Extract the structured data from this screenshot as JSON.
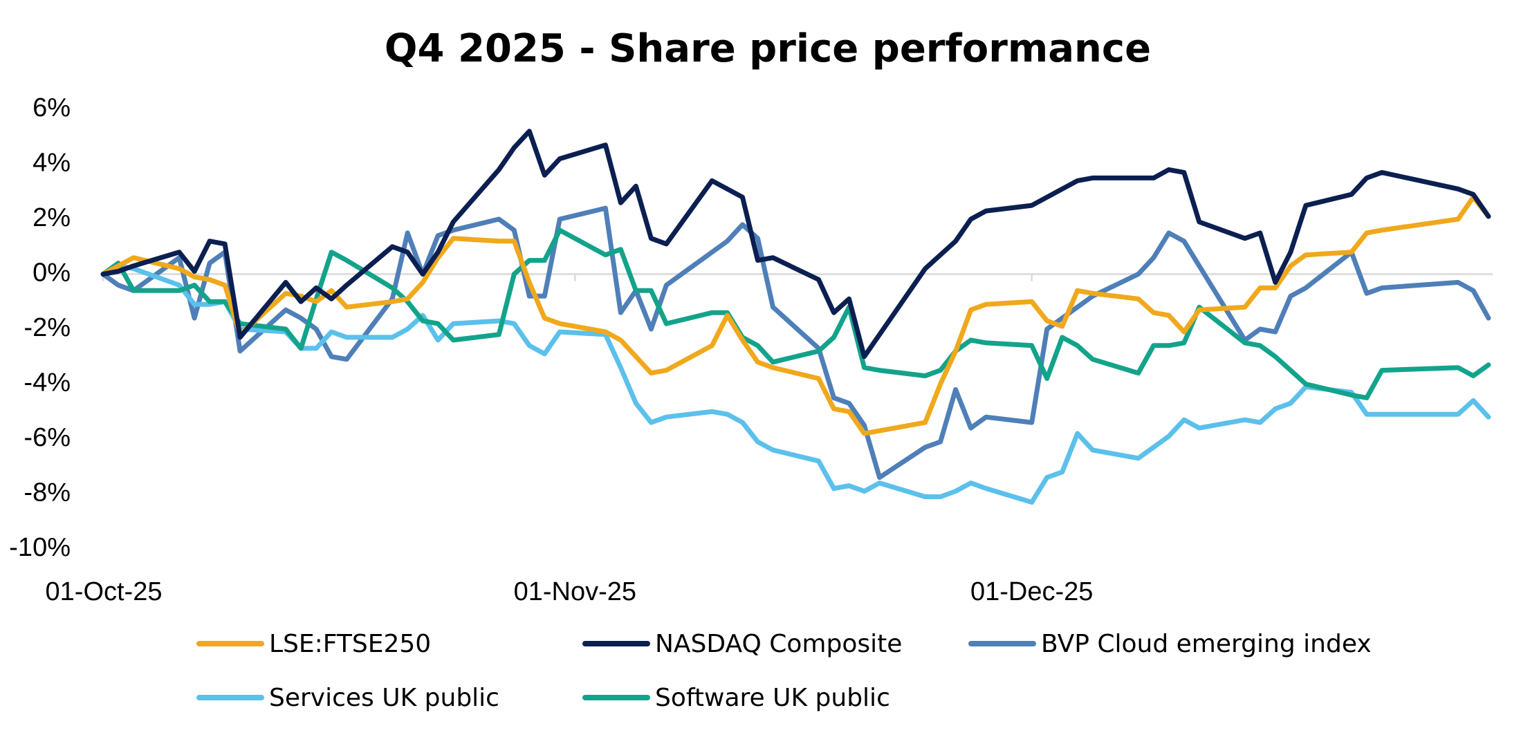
{
  "chart_data": {
    "type": "line",
    "title": "Q4 2025 - Share price performance",
    "x": [
      "2025-10-01",
      "2025-10-02",
      "2025-10-03",
      "2025-10-06",
      "2025-10-07",
      "2025-10-08",
      "2025-10-09",
      "2025-10-10",
      "2025-10-13",
      "2025-10-14",
      "2025-10-15",
      "2025-10-16",
      "2025-10-17",
      "2025-10-20",
      "2025-10-21",
      "2025-10-22",
      "2025-10-23",
      "2025-10-24",
      "2025-10-27",
      "2025-10-28",
      "2025-10-29",
      "2025-10-30",
      "2025-10-31",
      "2025-11-03",
      "2025-11-04",
      "2025-11-05",
      "2025-11-06",
      "2025-11-07",
      "2025-11-10",
      "2025-11-11",
      "2025-11-12",
      "2025-11-13",
      "2025-11-14",
      "2025-11-17",
      "2025-11-18",
      "2025-11-19",
      "2025-11-20",
      "2025-11-21",
      "2025-11-24",
      "2025-11-25",
      "2025-11-26",
      "2025-11-27",
      "2025-11-28",
      "2025-12-01",
      "2025-12-02",
      "2025-12-03",
      "2025-12-04",
      "2025-12-05",
      "2025-12-08",
      "2025-12-09",
      "2025-12-10",
      "2025-12-11",
      "2025-12-12",
      "2025-12-15",
      "2025-12-16",
      "2025-12-17",
      "2025-12-18",
      "2025-12-19",
      "2025-12-22",
      "2025-12-23",
      "2025-12-24",
      "2025-12-29",
      "2025-12-30",
      "2025-12-31"
    ],
    "series": [
      {
        "name": "LSE:FTSE250",
        "color": "#f0a81c",
        "values": [
          0,
          0.3,
          0.6,
          0.2,
          -0.1,
          -0.2,
          -0.4,
          -2.2,
          -0.7,
          -0.8,
          -1.0,
          -0.6,
          -1.2,
          -1.0,
          -0.9,
          -0.3,
          0.6,
          1.3,
          1.2,
          1.2,
          -0.3,
          -1.6,
          -1.8,
          -2.1,
          -2.4,
          -3.0,
          -3.6,
          -3.5,
          -2.6,
          -1.5,
          -2.4,
          -3.2,
          -3.4,
          -3.8,
          -4.9,
          -5.0,
          -5.8,
          -5.7,
          -5.4,
          -4.0,
          -2.8,
          -1.3,
          -1.1,
          -1.0,
          -1.7,
          -1.9,
          -0.6,
          -0.7,
          -0.9,
          -1.4,
          -1.5,
          -2.1,
          -1.3,
          -1.2,
          -0.5,
          -0.5,
          0.3,
          0.7,
          0.8,
          1.5,
          1.6,
          2.0,
          2.8,
          2.1
        ]
      },
      {
        "name": "NASDAQ Composite",
        "color": "#0b1f51",
        "values": [
          0,
          0.1,
          0.3,
          0.8,
          0.1,
          1.2,
          1.1,
          -2.3,
          -0.3,
          -1.0,
          -0.5,
          -0.9,
          -0.4,
          1.0,
          0.8,
          0.0,
          0.8,
          1.9,
          3.8,
          4.6,
          5.2,
          3.6,
          4.2,
          4.7,
          2.6,
          3.2,
          1.3,
          1.1,
          3.4,
          3.1,
          2.8,
          0.5,
          0.6,
          -0.2,
          -1.4,
          -0.9,
          -3.0,
          -2.2,
          0.2,
          0.7,
          1.2,
          2.0,
          2.3,
          2.5,
          2.8,
          3.1,
          3.4,
          3.5,
          3.5,
          3.5,
          3.8,
          3.7,
          1.9,
          1.3,
          1.5,
          -0.3,
          0.8,
          2.5,
          2.9,
          3.5,
          3.7,
          3.1,
          2.9,
          2.1
        ]
      },
      {
        "name": "BVP Cloud emerging index",
        "color": "#4f7fb8",
        "values": [
          0,
          -0.4,
          -0.6,
          0.6,
          -1.6,
          0.4,
          0.8,
          -2.8,
          -1.3,
          -1.6,
          -2.0,
          -3.0,
          -3.1,
          -0.9,
          1.5,
          0.0,
          1.4,
          1.6,
          2.0,
          1.6,
          -0.8,
          -0.8,
          2.0,
          2.4,
          -1.4,
          -0.6,
          -2.0,
          -0.4,
          0.8,
          1.2,
          1.8,
          1.3,
          -1.2,
          -2.7,
          -4.5,
          -4.7,
          -5.5,
          -7.4,
          -6.3,
          -6.1,
          -4.2,
          -5.6,
          -5.2,
          -5.4,
          -2.0,
          -1.6,
          -1.2,
          -0.8,
          0.0,
          0.6,
          1.5,
          1.2,
          0.3,
          -2.4,
          -2.0,
          -2.1,
          -0.8,
          -0.5,
          0.8,
          -0.7,
          -0.5,
          -0.3,
          -0.6,
          -1.6
        ]
      },
      {
        "name": "Services UK public",
        "color": "#5bc0eb",
        "values": [
          0,
          0.3,
          0.2,
          -0.4,
          -1.1,
          -1.1,
          -1.0,
          -2.0,
          -2.1,
          -2.7,
          -2.7,
          -2.1,
          -2.3,
          -2.3,
          -2.0,
          -1.5,
          -2.4,
          -1.8,
          -1.7,
          -1.8,
          -2.6,
          -2.9,
          -2.1,
          -2.2,
          -3.4,
          -4.7,
          -5.4,
          -5.2,
          -5.0,
          -5.1,
          -5.4,
          -6.1,
          -6.4,
          -6.8,
          -7.8,
          -7.7,
          -7.9,
          -7.6,
          -8.1,
          -8.1,
          -7.9,
          -7.6,
          -7.8,
          -8.3,
          -7.4,
          -7.2,
          -5.8,
          -6.4,
          -6.7,
          -6.3,
          -5.9,
          -5.3,
          -5.6,
          -5.3,
          -5.4,
          -4.9,
          -4.7,
          -4.1,
          -4.3,
          -5.1,
          -5.1,
          -5.1,
          -4.6,
          -5.2
        ]
      },
      {
        "name": "Software UK public",
        "color": "#13a38b",
        "values": [
          0,
          0.4,
          -0.6,
          -0.6,
          -0.4,
          -1.0,
          -1.0,
          -1.8,
          -2.0,
          -2.7,
          -0.9,
          0.8,
          0.5,
          -0.5,
          -1.0,
          -1.7,
          -1.8,
          -2.4,
          -2.2,
          0.0,
          0.5,
          0.5,
          1.6,
          0.7,
          0.9,
          -0.6,
          -0.6,
          -1.8,
          -1.4,
          -1.4,
          -2.3,
          -2.6,
          -3.2,
          -2.8,
          -2.3,
          -1.2,
          -3.4,
          -3.5,
          -3.7,
          -3.5,
          -2.8,
          -2.4,
          -2.5,
          -2.6,
          -3.8,
          -2.3,
          -2.6,
          -3.1,
          -3.6,
          -2.6,
          -2.6,
          -2.5,
          -1.2,
          -2.5,
          -2.6,
          -3.0,
          -3.5,
          -4.0,
          -4.4,
          -4.5,
          -3.5,
          -3.4,
          -3.7,
          -3.3
        ]
      }
    ],
    "xlim": [
      "2025-10-01",
      "2025-12-31"
    ],
    "xticks": [
      {
        "value": "2025-10-01",
        "label": "01-Oct-25"
      },
      {
        "value": "2025-11-01",
        "label": "01-Nov-25"
      },
      {
        "value": "2025-12-01",
        "label": "01-Dec-25"
      }
    ],
    "ylim": [
      -10,
      6
    ],
    "yticks": [
      {
        "value": -10,
        "label": "-10%"
      },
      {
        "value": -8,
        "label": "-8%"
      },
      {
        "value": -6,
        "label": "-6%"
      },
      {
        "value": -4,
        "label": "-4%"
      },
      {
        "value": -2,
        "label": "-2%"
      },
      {
        "value": 0,
        "label": "0%"
      },
      {
        "value": 2,
        "label": "2%"
      },
      {
        "value": 4,
        "label": "4%"
      },
      {
        "value": 6,
        "label": "6%"
      }
    ],
    "grid": false,
    "legend": "bottom"
  }
}
